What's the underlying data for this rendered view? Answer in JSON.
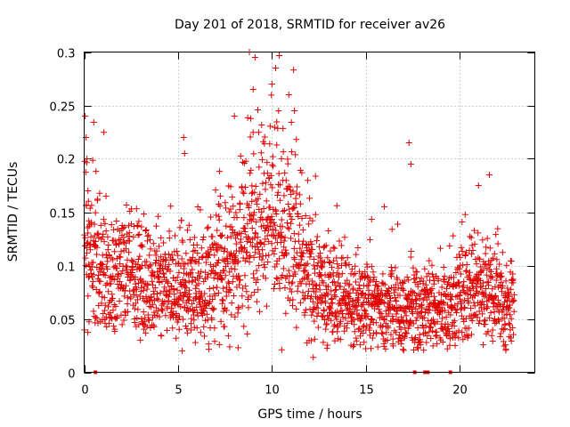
{
  "chart_data": {
    "type": "scatter",
    "title": "Day 201 of 2018, SRMTID for receiver av26",
    "xlabel": "GPS time / hours",
    "ylabel": "SRMTID / TECUs",
    "xlim": [
      0,
      24
    ],
    "ylim": [
      0,
      0.3
    ],
    "xticks": [
      0,
      5,
      10,
      15,
      20
    ],
    "yticks": [
      0,
      0.05,
      0.1,
      0.15,
      0.2,
      0.25,
      0.3
    ],
    "xtick_labels": [
      "0",
      "5",
      "10",
      "15",
      "20"
    ],
    "ytick_labels": [
      "0",
      "0.05",
      "0.1",
      "0.15",
      "0.2",
      "0.25",
      "0.3"
    ],
    "grid": true,
    "marker": "+",
    "color": "#e00000",
    "x_extent": [
      0,
      22.9
    ],
    "zero_points_x": [
      0.6,
      17.6,
      18.15,
      18.3,
      19.5
    ],
    "trend": [
      {
        "x": 0.0,
        "y": 0.115
      },
      {
        "x": 1.0,
        "y": 0.085
      },
      {
        "x": 2.5,
        "y": 0.09
      },
      {
        "x": 4.0,
        "y": 0.08
      },
      {
        "x": 5.0,
        "y": 0.075
      },
      {
        "x": 6.5,
        "y": 0.085
      },
      {
        "x": 8.0,
        "y": 0.105
      },
      {
        "x": 9.0,
        "y": 0.13
      },
      {
        "x": 10.0,
        "y": 0.135
      },
      {
        "x": 11.0,
        "y": 0.14
      },
      {
        "x": 12.0,
        "y": 0.09
      },
      {
        "x": 13.0,
        "y": 0.075
      },
      {
        "x": 15.0,
        "y": 0.065
      },
      {
        "x": 17.0,
        "y": 0.06
      },
      {
        "x": 19.0,
        "y": 0.055
      },
      {
        "x": 20.0,
        "y": 0.065
      },
      {
        "x": 21.0,
        "y": 0.075
      },
      {
        "x": 22.9,
        "y": 0.06
      }
    ],
    "notable_points": [
      {
        "x": 0.05,
        "y": 0.24
      },
      {
        "x": 0.1,
        "y": 0.22
      },
      {
        "x": 0.15,
        "y": 0.2
      },
      {
        "x": 0.2,
        "y": 0.17
      },
      {
        "x": 5.3,
        "y": 0.22
      },
      {
        "x": 5.35,
        "y": 0.205
      },
      {
        "x": 8.0,
        "y": 0.24
      },
      {
        "x": 8.8,
        "y": 0.3
      },
      {
        "x": 9.1,
        "y": 0.295
      },
      {
        "x": 9.0,
        "y": 0.265
      },
      {
        "x": 10.0,
        "y": 0.27
      },
      {
        "x": 10.2,
        "y": 0.285
      },
      {
        "x": 10.9,
        "y": 0.26
      },
      {
        "x": 11.2,
        "y": 0.245
      },
      {
        "x": 17.3,
        "y": 0.215
      },
      {
        "x": 17.4,
        "y": 0.195
      },
      {
        "x": 21.0,
        "y": 0.175
      },
      {
        "x": 8.2,
        "y": 0.023
      },
      {
        "x": 12.2,
        "y": 0.014
      }
    ]
  }
}
